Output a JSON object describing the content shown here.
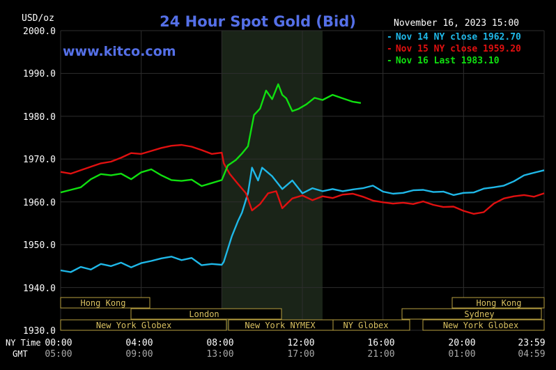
{
  "header": {
    "units": "USD/oz",
    "title": "24 Hour Spot Gold (Bid)",
    "datetime": "November 16, 2023 15:00",
    "watermark": "www.kitco.com"
  },
  "legend": [
    {
      "text": "Nov 14 NY close 1962.70",
      "color": "#1fb8e8"
    },
    {
      "text": "Nov 15 NY close 1959.20",
      "color": "#e01010"
    },
    {
      "text": "Nov 16 Last 1983.10",
      "color": "#10e010"
    }
  ],
  "time_axis": {
    "ny_label": "NY Time",
    "gmt_label": "GMT",
    "ny_ticks": [
      "00:00",
      "04:00",
      "08:00",
      "12:00",
      "16:00",
      "20:00",
      "23:59"
    ],
    "gmt_ticks": [
      "05:00",
      "09:00",
      "13:00",
      "17:00",
      "21:00",
      "01:00",
      "04:59"
    ]
  },
  "sessions": {
    "hong_kong_1": "Hong Kong",
    "hong_kong_2": "Hong Kong",
    "london": "London",
    "sydney": "Sydney",
    "ny_globex_1": "New York Globex",
    "ny_nymex": "New York NYMEX",
    "ny_globex_2": "NY Globex",
    "ny_globex_3": "New York Globex"
  },
  "chart_data": {
    "type": "line",
    "title": "24 Hour Spot Gold (Bid)",
    "ylabel": "USD/oz",
    "ylim": [
      1930,
      2000
    ],
    "xlim": [
      0,
      24
    ],
    "yticks": [
      "2000.0",
      "1990.0",
      "1980.0",
      "1970.0",
      "1960.0",
      "1950.0",
      "1940.0",
      "1930.0"
    ],
    "highlight_x": [
      8,
      13
    ],
    "grid": true,
    "legend_position": "top-right",
    "series": [
      {
        "name": "Nov 14 NY close 1962.70",
        "color": "#1fb8e8",
        "x": [
          0,
          0.5,
          1,
          1.5,
          2,
          2.5,
          3,
          3.5,
          4,
          4.5,
          5,
          5.5,
          6,
          6.5,
          7,
          7.5,
          8,
          8.1,
          8.3,
          8.5,
          8.8,
          9,
          9.3,
          9.5,
          9.8,
          10,
          10.5,
          11,
          11.5,
          12,
          12.5,
          13,
          13.5,
          14,
          14.5,
          15,
          15.5,
          16,
          16.5,
          17,
          17.5,
          18,
          18.5,
          19,
          19.5,
          20,
          20.5,
          21,
          21.5,
          22,
          22.5,
          23,
          23.5,
          24
        ],
        "y": [
          1944,
          1943.6,
          1944.8,
          1944.2,
          1945.5,
          1945,
          1945.8,
          1944.7,
          1945.7,
          1946.2,
          1946.8,
          1947.2,
          1946.4,
          1946.9,
          1945.2,
          1945.5,
          1945.3,
          1946,
          1949,
          1952,
          1955.5,
          1957.5,
          1962,
          1968,
          1965,
          1968,
          1966,
          1963,
          1965,
          1962,
          1963.2,
          1962.5,
          1963,
          1962.5,
          1962.9,
          1963.2,
          1963.8,
          1962.4,
          1961.9,
          1962.1,
          1962.7,
          1962.8,
          1962.3,
          1962.4,
          1961.6,
          1962.1,
          1962.2,
          1963.1,
          1963.4,
          1963.8,
          1964.8,
          1966.2,
          1966.8,
          1967.4
        ]
      },
      {
        "name": "Nov 15 NY close 1959.20",
        "color": "#e01010",
        "x": [
          0,
          0.5,
          1,
          1.5,
          2,
          2.5,
          3,
          3.5,
          4,
          4.5,
          5,
          5.5,
          6,
          6.5,
          7,
          7.5,
          8,
          8.1,
          8.4,
          8.8,
          9.2,
          9.5,
          9.9,
          10.3,
          10.7,
          11,
          11.5,
          12,
          12.5,
          13,
          13.5,
          14,
          14.5,
          15,
          15.5,
          16,
          16.5,
          17,
          17.5,
          18,
          18.5,
          19,
          19.5,
          20,
          20.5,
          21,
          21.5,
          22,
          22.5,
          23,
          23.5,
          24
        ],
        "y": [
          1967,
          1966.6,
          1967.4,
          1968.2,
          1969,
          1969.4,
          1970.3,
          1971.4,
          1971.2,
          1971.9,
          1972.6,
          1973.1,
          1973.3,
          1972.9,
          1972.1,
          1971.2,
          1971.5,
          1969,
          1966.5,
          1964.2,
          1962,
          1958,
          1959.5,
          1962,
          1962.5,
          1958.5,
          1960.8,
          1961.5,
          1960.4,
          1961.3,
          1960.9,
          1961.7,
          1961.9,
          1961.2,
          1960.3,
          1959.9,
          1959.6,
          1959.8,
          1959.5,
          1960.1,
          1959.3,
          1958.8,
          1958.9,
          1957.9,
          1957.2,
          1957.6,
          1959.6,
          1960.8,
          1961.3,
          1961.6,
          1961.2,
          1962
        ]
      },
      {
        "name": "Nov 16 Last 1983.10",
        "color": "#10e010",
        "x": [
          0,
          0.5,
          1,
          1.5,
          2,
          2.5,
          3,
          3.5,
          4,
          4.5,
          5,
          5.5,
          6,
          6.5,
          7,
          7.5,
          8,
          8.3,
          8.7,
          9,
          9.3,
          9.6,
          9.9,
          10.2,
          10.5,
          10.8,
          11,
          11.2,
          11.5,
          11.8,
          12.2,
          12.6,
          13,
          13.5,
          14,
          14.5,
          14.9
        ],
        "y": [
          1962.2,
          1962.8,
          1963.4,
          1965.3,
          1966.5,
          1966.2,
          1966.6,
          1965.3,
          1966.9,
          1967.6,
          1966.2,
          1965.1,
          1964.9,
          1965.2,
          1963.7,
          1964.4,
          1965.1,
          1968.5,
          1969.8,
          1971.3,
          1973,
          1980.3,
          1981.8,
          1986,
          1984,
          1987.5,
          1985,
          1984.2,
          1981.2,
          1981.7,
          1982.8,
          1984.3,
          1983.8,
          1985,
          1984.2,
          1983.4,
          1983.1
        ]
      }
    ]
  }
}
